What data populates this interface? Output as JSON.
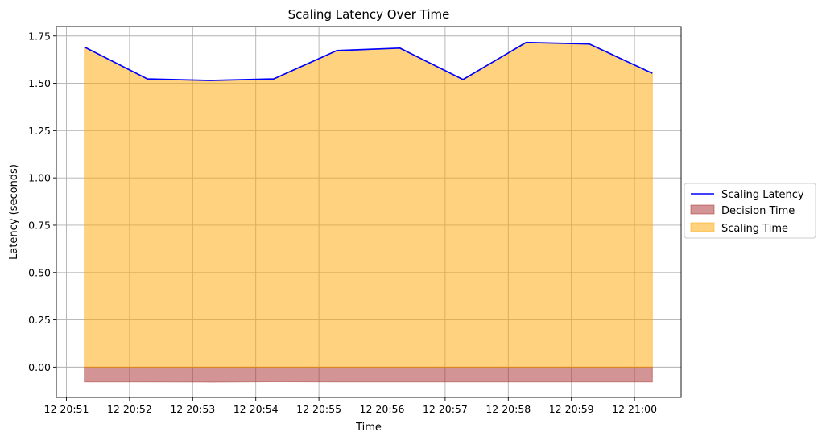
{
  "chart_data": {
    "type": "area",
    "title": "Scaling Latency Over Time",
    "xlabel": "Time",
    "ylabel": "Latency (seconds)",
    "x": [
      "12 20:51:17",
      "12 20:52:17",
      "12 20:53:17",
      "12 20:54:17",
      "12 20:55:17",
      "12 20:56:17",
      "12 20:57:17",
      "12 20:58:17",
      "12 20:59:17",
      "12 21:00:17"
    ],
    "x_tick_labels": [
      "12 20:51",
      "12 20:52",
      "12 20:53",
      "12 20:54",
      "12 20:55",
      "12 20:56",
      "12 20:57",
      "12 20:58",
      "12 20:59",
      "12 21:00"
    ],
    "y_tick_labels": [
      "0.00",
      "0.25",
      "0.50",
      "0.75",
      "1.00",
      "1.25",
      "1.50",
      "1.75"
    ],
    "y_ticks": [
      0,
      0.25,
      0.5,
      0.75,
      1.0,
      1.25,
      1.5,
      1.75
    ],
    "ylim": [
      -0.16,
      1.8
    ],
    "grid": true,
    "legend_position": "center-right outside",
    "series": [
      {
        "name": "Scaling Latency",
        "kind": "line",
        "color": "#0000ff",
        "values": [
          1.692,
          1.523,
          1.515,
          1.523,
          1.673,
          1.686,
          1.52,
          1.716,
          1.708,
          1.553
        ]
      },
      {
        "name": "Decision Time",
        "kind": "fill",
        "color": "#a52a2a",
        "opacity": 0.5,
        "values": [
          -0.078,
          -0.078,
          -0.079,
          -0.077,
          -0.078,
          -0.078,
          -0.078,
          -0.078,
          -0.078,
          -0.078
        ]
      },
      {
        "name": "Scaling Time",
        "kind": "fill",
        "color": "#ffa500",
        "opacity": 0.5,
        "values": [
          1.692,
          1.523,
          1.515,
          1.523,
          1.673,
          1.686,
          1.52,
          1.716,
          1.708,
          1.553
        ]
      }
    ]
  }
}
